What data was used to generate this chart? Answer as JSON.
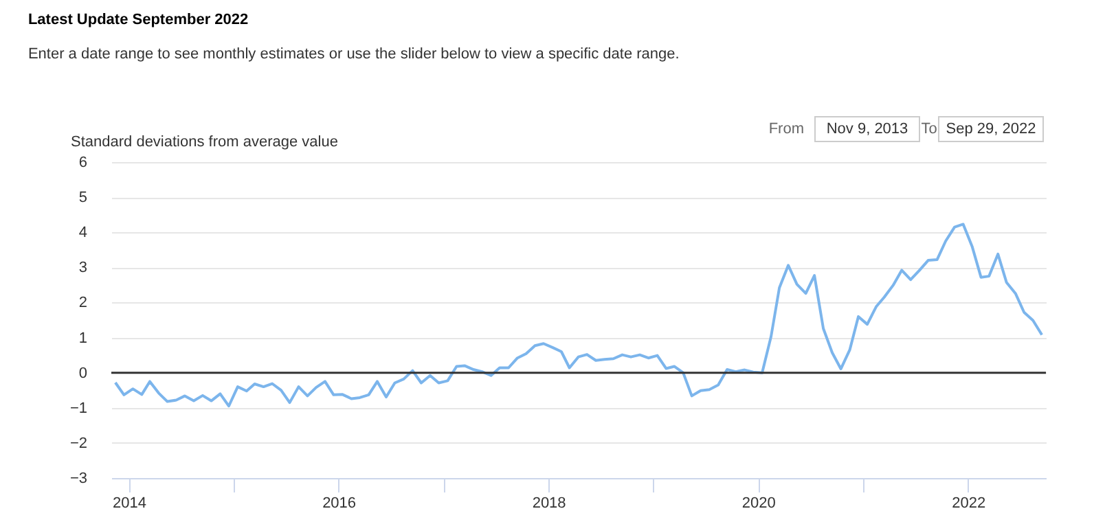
{
  "chart_data": [
    {
      "type": "line",
      "title": "Latest Update September 2022",
      "subtitle": "Enter a date range to see monthly estimates or use the slider below to view a specific date range.",
      "ylabel": "Standard deviations from average value",
      "annotations": [
        "From",
        "Nov 9, 2013",
        "To",
        "Sep 29, 2022"
      ],
      "x": [
        "2013-11",
        "2013-12",
        "2014-01",
        "2014-02",
        "2014-03",
        "2014-04",
        "2014-05",
        "2014-06",
        "2014-07",
        "2014-08",
        "2014-09",
        "2014-10",
        "2014-11",
        "2014-12",
        "2015-01",
        "2015-02",
        "2015-03",
        "2015-04",
        "2015-05",
        "2015-06",
        "2015-07",
        "2015-08",
        "2015-09",
        "2015-10",
        "2015-11",
        "2015-12",
        "2016-01",
        "2016-02",
        "2016-03",
        "2016-04",
        "2016-05",
        "2016-06",
        "2016-07",
        "2016-08",
        "2016-09",
        "2016-10",
        "2016-11",
        "2016-12",
        "2017-01",
        "2017-02",
        "2017-03",
        "2017-04",
        "2017-05",
        "2017-06",
        "2017-07",
        "2017-08",
        "2017-09",
        "2017-10",
        "2017-11",
        "2017-12",
        "2018-01",
        "2018-02",
        "2018-03",
        "2018-04",
        "2018-05",
        "2018-06",
        "2018-07",
        "2018-08",
        "2018-09",
        "2018-10",
        "2018-11",
        "2018-12",
        "2019-01",
        "2019-02",
        "2019-03",
        "2019-04",
        "2019-05",
        "2019-06",
        "2019-07",
        "2019-08",
        "2019-09",
        "2019-10",
        "2019-11",
        "2019-12",
        "2020-01",
        "2020-02",
        "2020-03",
        "2020-04",
        "2020-05",
        "2020-06",
        "2020-07",
        "2020-08",
        "2020-09",
        "2020-10",
        "2020-11",
        "2020-12",
        "2021-01",
        "2021-02",
        "2021-03",
        "2021-04",
        "2021-05",
        "2021-06",
        "2021-07",
        "2021-08",
        "2021-09",
        "2021-10",
        "2021-11",
        "2021-12",
        "2022-01",
        "2022-02",
        "2022-03",
        "2022-04",
        "2022-05",
        "2022-06",
        "2022-07",
        "2022-08",
        "2022-09"
      ],
      "series": [
        {
          "color": "#7cb5ec",
          "values": [
            -0.28,
            -0.63,
            -0.46,
            -0.62,
            -0.25,
            -0.58,
            -0.82,
            -0.78,
            -0.66,
            -0.8,
            -0.65,
            -0.8,
            -0.6,
            -0.95,
            -0.4,
            -0.52,
            -0.32,
            -0.4,
            -0.31,
            -0.5,
            -0.85,
            -0.4,
            -0.66,
            -0.42,
            -0.25,
            -0.63,
            -0.62,
            -0.74,
            -0.71,
            -0.63,
            -0.25,
            -0.69,
            -0.29,
            -0.18,
            0.06,
            -0.29,
            -0.08,
            -0.29,
            -0.23,
            0.18,
            0.2,
            0.09,
            0.03,
            -0.08,
            0.14,
            0.14,
            0.42,
            0.54,
            0.77,
            0.83,
            0.72,
            0.6,
            0.14,
            0.45,
            0.52,
            0.35,
            0.38,
            0.4,
            0.51,
            0.45,
            0.51,
            0.42,
            0.49,
            0.12,
            0.18,
            0,
            -0.66,
            -0.51,
            -0.48,
            -0.35,
            0.09,
            0.03,
            0.08,
            0.02,
            0,
            1.03,
            2.42,
            3.06,
            2.52,
            2.26,
            2.77,
            1.26,
            0.57,
            0.11,
            0.65,
            1.6,
            1.38,
            1.88,
            2.15,
            2.49,
            2.92,
            2.65,
            2.91,
            3.2,
            3.22,
            3.75,
            4.15,
            4.23,
            3.6,
            2.72,
            2.75,
            3.38,
            2.57,
            2.26,
            1.72,
            1.49,
            1.08
          ]
        }
      ],
      "xlim": [
        "2013-11-01",
        "2022-09-29"
      ],
      "xticks": [
        {
          "value": "2014-01-01",
          "label": "2014"
        },
        {
          "value": "2015-01-01",
          "label": null
        },
        {
          "value": "2016-01-01",
          "label": "2016"
        },
        {
          "value": "2017-01-01",
          "label": null
        },
        {
          "value": "2018-01-01",
          "label": "2018"
        },
        {
          "value": "2019-01-01",
          "label": null
        },
        {
          "value": "2020-01-01",
          "label": "2020"
        },
        {
          "value": "2021-01-01",
          "label": null
        },
        {
          "value": "2022-01-01",
          "label": "2022"
        }
      ],
      "ylim": [
        -3,
        6
      ],
      "yticks": [
        -3,
        -2,
        -1,
        0,
        1,
        2,
        3,
        4,
        5,
        6
      ],
      "ref_lines": [
        {
          "axis": "y",
          "value": 0,
          "color": "#333333"
        }
      ],
      "grid": "y",
      "legend": false,
      "marker": "none",
      "line_style": "solid"
    }
  ]
}
